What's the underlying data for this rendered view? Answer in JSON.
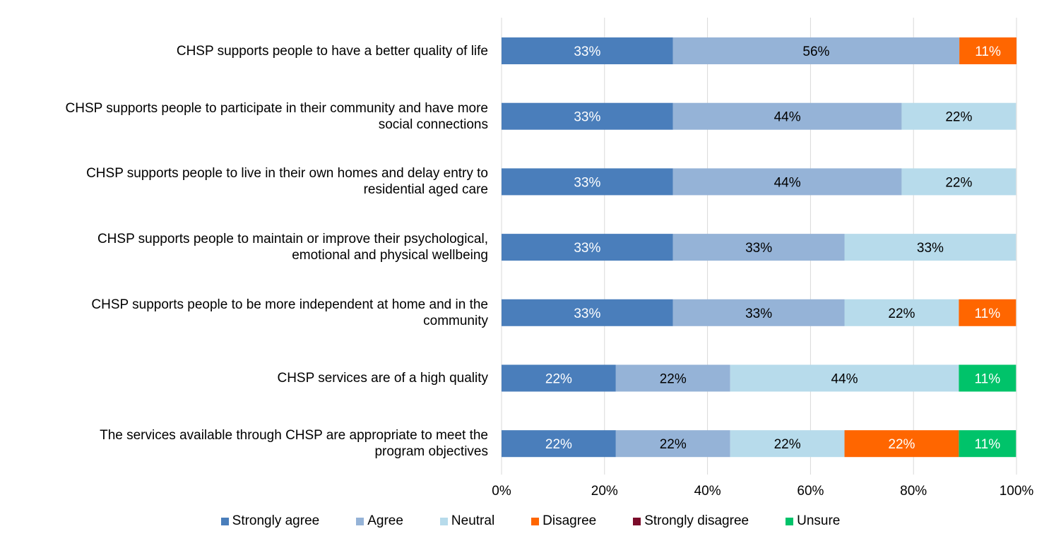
{
  "chart_data": {
    "type": "bar",
    "orientation": "horizontal",
    "stacked": true,
    "percent": true,
    "categories": [
      "CHSP supports people to have a better quality of life",
      "CHSP supports people to participate in their community and have more social connections",
      "CHSP supports people to live in their own homes and delay entry to residential aged care",
      "CHSP supports people to maintain or improve their psychological, emotional and physical wellbeing",
      "CHSP supports people to be more independent at home and in the community",
      "CHSP services are of a high quality",
      "The services available through CHSP are appropriate to meet the program objectives"
    ],
    "category_lines": [
      [
        "CHSP supports people to have a better quality of life"
      ],
      [
        "CHSP supports people to participate in their community and have more",
        "social connections"
      ],
      [
        "CHSP supports people to live in their own homes and delay entry to",
        "residential aged care"
      ],
      [
        "CHSP supports people to maintain or improve their psychological,",
        "emotional and physical wellbeing"
      ],
      [
        "CHSP supports people to be more independent at home and in the",
        "community"
      ],
      [
        "CHSP services are of a high quality"
      ],
      [
        "The services available through CHSP are appropriate to meet the",
        "program objectives"
      ]
    ],
    "series": [
      {
        "name": "Strongly agree",
        "color": "#4a7ebb",
        "label_color": "#ffffff",
        "values": [
          33.3,
          33.3,
          33.3,
          33.3,
          33.3,
          22.2,
          22.2
        ],
        "labels": [
          "33%",
          "33%",
          "33%",
          "33%",
          "33%",
          "22%",
          "22%"
        ]
      },
      {
        "name": "Agree",
        "color": "#95b3d7",
        "label_color": "#000000",
        "values": [
          55.6,
          44.4,
          44.4,
          33.3,
          33.3,
          22.2,
          22.2
        ],
        "labels": [
          "56%",
          "44%",
          "44%",
          "33%",
          "33%",
          "22%",
          "22%"
        ]
      },
      {
        "name": "Neutral",
        "color": "#b7dbeb",
        "label_color": "#000000",
        "values": [
          0,
          22.2,
          22.2,
          33.3,
          22.2,
          44.4,
          22.2
        ],
        "labels": [
          "",
          "22%",
          "22%",
          "33%",
          "22%",
          "44%",
          "22%"
        ]
      },
      {
        "name": "Disagree",
        "color": "#ff6600",
        "label_color": "#ffffff",
        "values": [
          11.1,
          0,
          0,
          0,
          11.1,
          0,
          22.2
        ],
        "labels": [
          "11%",
          "",
          "",
          "",
          "11%",
          "",
          "22%"
        ]
      },
      {
        "name": "Strongly disagree",
        "color": "#7b0c2a",
        "label_color": "#ffffff",
        "values": [
          0,
          0,
          0,
          0,
          0,
          0,
          0
        ],
        "labels": [
          "",
          "",
          "",
          "",
          "",
          "",
          ""
        ]
      },
      {
        "name": "Unsure",
        "color": "#00c36a",
        "label_color": "#ffffff",
        "values": [
          0,
          0,
          0,
          0,
          0,
          11.1,
          11.1
        ],
        "labels": [
          "",
          "",
          "",
          "",
          "",
          "11%",
          "11%"
        ]
      }
    ],
    "xlim": [
      0,
      100
    ],
    "xticks": [
      0,
      20,
      40,
      60,
      80,
      100
    ],
    "xtick_labels": [
      "0%",
      "20%",
      "40%",
      "60%",
      "80%",
      "100%"
    ],
    "grid": "vertical",
    "grid_color": "#d9d9d9",
    "legend_position": "bottom",
    "title": "",
    "xlabel": "",
    "ylabel": ""
  }
}
